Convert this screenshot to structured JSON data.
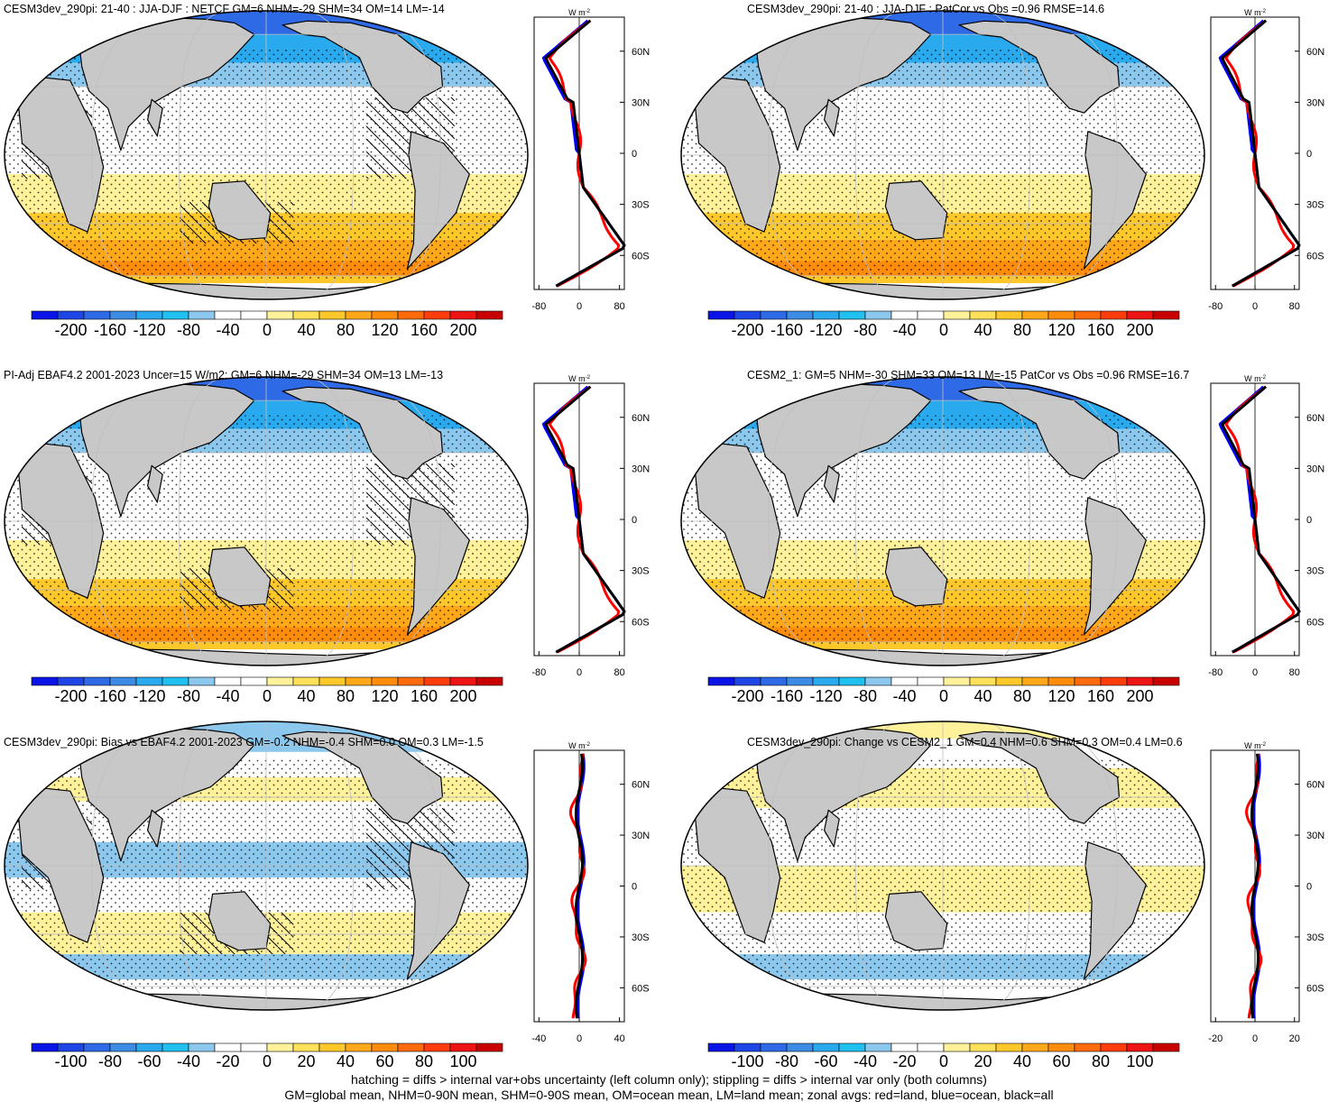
{
  "panels": [
    {
      "title": "CESM3dev_290pi: 21-40 : JJA-DJF : NETCF GM=6 NHM=-29 SHM=34 OM=14 LM=-14",
      "kind": "mean",
      "hatching": true,
      "colorbar_labels": [
        "-200",
        "-160",
        "-120",
        "-80",
        "-40",
        "0",
        "40",
        "80",
        "120",
        "160",
        "200"
      ],
      "zonal_ticks": [
        "-80",
        "0",
        "80"
      ],
      "lat_labels": [
        "60N",
        "30N",
        "0",
        "30S",
        "60S"
      ],
      "unit": "W m-2"
    },
    {
      "title": "CESM3dev_290pi: 21-40 : JJA-DJF : PatCor vs Obs =0.96 RMSE=14.6",
      "kind": "mean",
      "hatching": false,
      "colorbar_labels": [
        "-200",
        "-160",
        "-120",
        "-80",
        "-40",
        "0",
        "40",
        "80",
        "120",
        "160",
        "200"
      ],
      "zonal_ticks": [
        "-80",
        "0",
        "80"
      ],
      "lat_labels": [
        "60N",
        "30N",
        "0",
        "30S",
        "60S"
      ],
      "unit": "W m-2"
    },
    {
      "title": "PI-Adj EBAF4.2 2001-2023 Uncer=15 W/m2: GM=6 NHM=-29 SHM=34 OM=13 LM=-13",
      "kind": "mean",
      "hatching": true,
      "colorbar_labels": [
        "-200",
        "-160",
        "-120",
        "-80",
        "-40",
        "0",
        "40",
        "80",
        "120",
        "160",
        "200"
      ],
      "zonal_ticks": [
        "-80",
        "0",
        "80"
      ],
      "lat_labels": [
        "60N",
        "30N",
        "0",
        "30S",
        "60S"
      ],
      "unit": "W m-2"
    },
    {
      "title": "CESM2_1: GM=5 NHM=-30 SHM=33 OM=13 LM=-15 PatCor vs Obs =0.96 RMSE=16.7",
      "kind": "mean",
      "hatching": false,
      "colorbar_labels": [
        "-200",
        "-160",
        "-120",
        "-80",
        "-40",
        "0",
        "40",
        "80",
        "120",
        "160",
        "200"
      ],
      "zonal_ticks": [
        "-80",
        "0",
        "80"
      ],
      "lat_labels": [
        "60N",
        "30N",
        "0",
        "30S",
        "60S"
      ],
      "unit": "W m-2"
    },
    {
      "title": "CESM3dev_290pi: Bias vs EBAF4.2 2001-2023 GM=-0.2 NHM=-0.4 SHM=0.0 OM=0.3 LM=-1.5",
      "kind": "diff",
      "hatching": true,
      "colorbar_labels": [
        "-100",
        "-80",
        "-60",
        "-40",
        "-20",
        "0",
        "20",
        "40",
        "60",
        "80",
        "100"
      ],
      "zonal_ticks": [
        "-40",
        "0",
        "40"
      ],
      "lat_labels": [
        "60N",
        "30N",
        "0",
        "30S",
        "60S"
      ],
      "unit": "W m-2"
    },
    {
      "title": "CESM3dev_290pi: Change vs CESM2_1 GM=0.4 NHM=0.6 SHM=0.3 OM=0.4 LM=0.6",
      "kind": "diff",
      "hatching": false,
      "colorbar_labels": [
        "-100",
        "-80",
        "-60",
        "-40",
        "-20",
        "0",
        "20",
        "40",
        "60",
        "80",
        "100"
      ],
      "zonal_ticks": [
        "-20",
        "0",
        "20"
      ],
      "lat_labels": [
        "60N",
        "30N",
        "0",
        "30S",
        "60S"
      ],
      "unit": "W m-2"
    }
  ],
  "caption": {
    "line1": "hatching = diffs > internal var+obs uncertainty (left column only); stippling = diffs > internal var only (both columns)",
    "line2": "GM=global mean, NHM=0-90N mean, SHM=0-90S mean, OM=ocean mean, LM=land mean; zonal avgs: red=land, blue=ocean, black=all"
  },
  "colors": {
    "land": "#c8c8c8",
    "colorbar": [
      "#0a14e6",
      "#1e46e6",
      "#2e69e6",
      "#3c8ce6",
      "#2aaaee",
      "#20c0f0",
      "#8cc8ee",
      "#ffffff",
      "#ffffff",
      "#fff29a",
      "#ffe05a",
      "#ffc82a",
      "#ffa81a",
      "#ff8c0a",
      "#ff6a0a",
      "#ff3c0a",
      "#ee1414",
      "#c80000"
    ],
    "zonal_land": "#ff0000",
    "zonal_ocean": "#0000ff",
    "zonal_all": "#000000"
  }
}
